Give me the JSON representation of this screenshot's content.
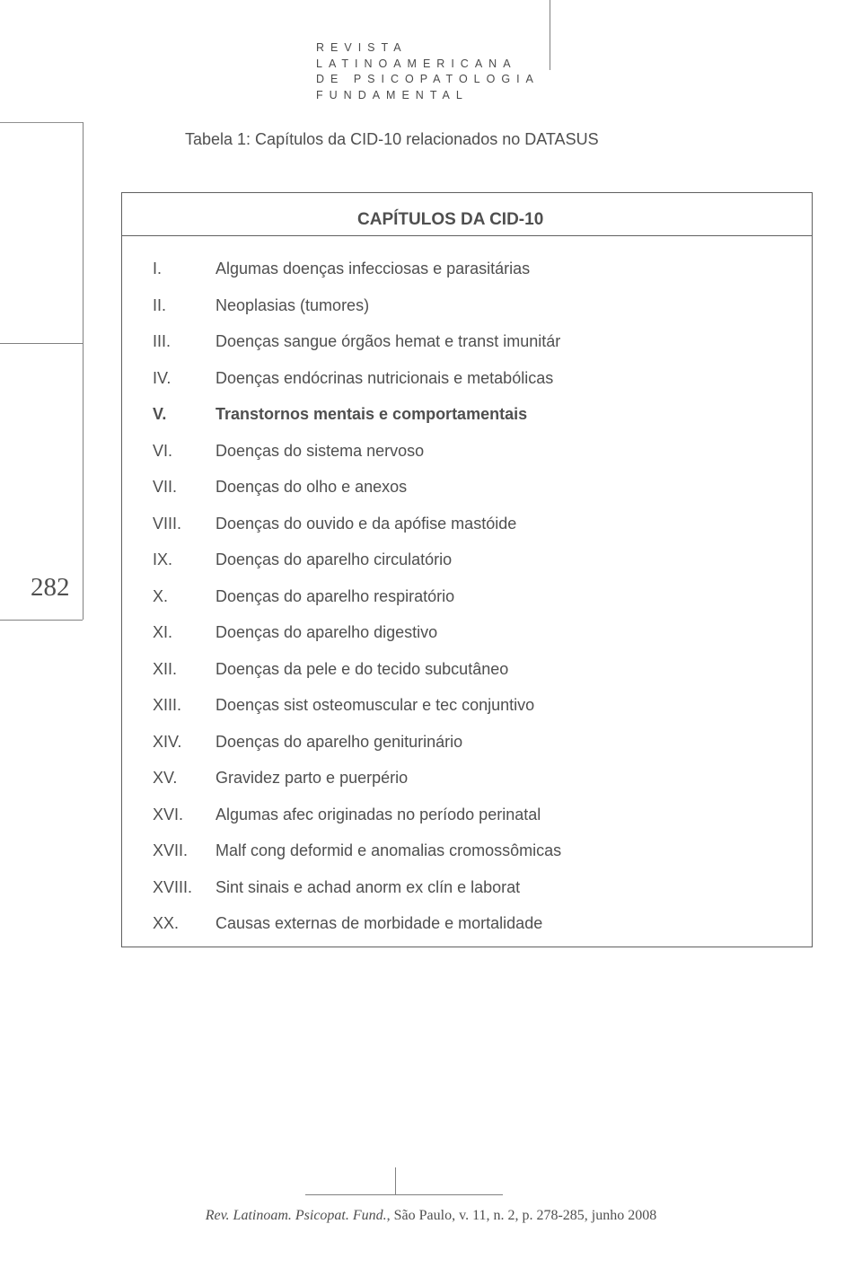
{
  "header": {
    "line1": "REVISTA",
    "line2": "LATINOAMERICANA",
    "line3": "DE PSICOPATOLOGIA",
    "line4": "FUNDAMENTAL"
  },
  "caption": "Tabela 1: Capítulos da CID-10 relacionados no DATASUS",
  "table_heading": "CAPÍTULOS DA CID-10",
  "page_number": "282",
  "rows": [
    {
      "roman": "I.",
      "desc": "Algumas doenças infecciosas e parasitárias",
      "bold": false
    },
    {
      "roman": "II.",
      "desc": "Neoplasias (tumores)",
      "bold": false
    },
    {
      "roman": "III.",
      "desc": "Doenças sangue órgãos hemat e transt imunitár",
      "bold": false
    },
    {
      "roman": "IV.",
      "desc": "Doenças endócrinas nutricionais e metabólicas",
      "bold": false
    },
    {
      "roman": "V.",
      "desc": "Transtornos mentais e comportamentais",
      "bold": true
    },
    {
      "roman": "VI.",
      "desc": "Doenças do sistema nervoso",
      "bold": false
    },
    {
      "roman": "VII.",
      "desc": "Doenças do olho e anexos",
      "bold": false
    },
    {
      "roman": "VIII.",
      "desc": "Doenças do ouvido e da apófise mastóide",
      "bold": false
    },
    {
      "roman": "IX.",
      "desc": "Doenças do aparelho circulatório",
      "bold": false
    },
    {
      "roman": "X.",
      "desc": "Doenças do aparelho respiratório",
      "bold": false
    },
    {
      "roman": "XI.",
      "desc": "Doenças do aparelho digestivo",
      "bold": false
    },
    {
      "roman": "XII.",
      "desc": "Doenças da pele e do tecido subcutâneo",
      "bold": false
    },
    {
      "roman": "XIII.",
      "desc": "Doenças sist osteomuscular e tec conjuntivo",
      "bold": false
    },
    {
      "roman": "XIV.",
      "desc": "Doenças do aparelho geniturinário",
      "bold": false
    },
    {
      "roman": "XV.",
      "desc": "Gravidez parto e puerpério",
      "bold": false
    },
    {
      "roman": "XVI.",
      "desc": "Algumas afec originadas no período perinatal",
      "bold": false
    },
    {
      "roman": "XVII.",
      "desc": "Malf cong deformid e anomalias cromossômicas",
      "bold": false
    },
    {
      "roman": "XVIII.",
      "desc": "Sint sinais e achad anorm ex clín e laborat",
      "bold": false
    },
    {
      "roman": "XX.",
      "desc": "Causas externas de morbidade e mortalidade",
      "bold": false
    }
  ],
  "footer": {
    "journal": "Rev. Latinoam. Psicopat. Fund.",
    "citation": ", São Paulo, v. 11, n. 2, p. 278-285, junho 2008"
  },
  "colors": {
    "text": "#4f4f4f",
    "line": "#808080",
    "background": "#ffffff"
  }
}
